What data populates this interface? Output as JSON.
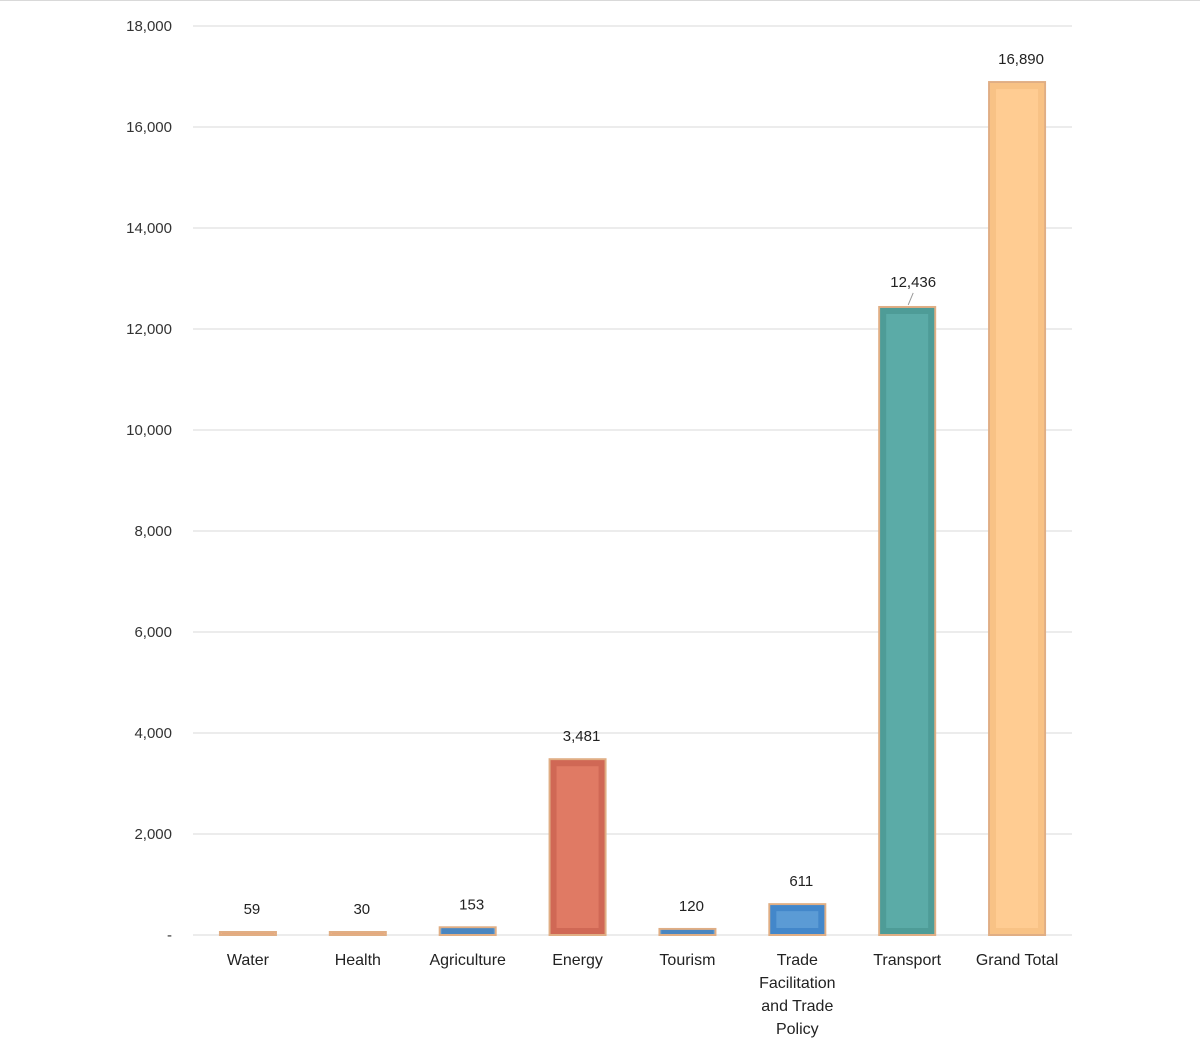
{
  "chart_data": {
    "type": "bar",
    "title": "",
    "xlabel": "",
    "ylabel": "",
    "ylim": [
      0,
      18000
    ],
    "yticks": [
      0,
      2000,
      4000,
      6000,
      8000,
      10000,
      12000,
      14000,
      16000,
      18000
    ],
    "ytick_labels": [
      "-",
      "2,000",
      "4,000",
      "6,000",
      "8,000",
      "10,000",
      "12,000",
      "14,000",
      "16,000",
      "18,000"
    ],
    "grid": true,
    "legend": "none",
    "categories": [
      [
        "Water"
      ],
      [
        "Health"
      ],
      [
        "Agriculture"
      ],
      [
        "Energy"
      ],
      [
        "Tourism"
      ],
      [
        "Trade",
        "Facilitation",
        "and Trade",
        "Policy"
      ],
      [
        "Transport"
      ],
      [
        "Grand Total"
      ]
    ],
    "values": [
      59,
      30,
      153,
      3481,
      120,
      611,
      12436,
      16890
    ],
    "value_labels": [
      "59",
      "30",
      "153",
      "3,481",
      "120",
      "611",
      "12,436",
      "16,890"
    ],
    "colors": {
      "fill": [
        "#f4b183",
        "#f4b183",
        "#5b9bd5",
        "#e07a64",
        "#5b9bd5",
        "#5b9bd5",
        "#5baba7",
        "#ffcc92"
      ],
      "inner_border": [
        "#e8a87c",
        "#e8a87c",
        "#4a86c0",
        "#cc6552",
        "#4a86c0",
        "#3f84c8",
        "#4c9994",
        "#f7c083"
      ],
      "outer_border": "#e0ae84",
      "grid": "#d9d9d9"
    }
  }
}
